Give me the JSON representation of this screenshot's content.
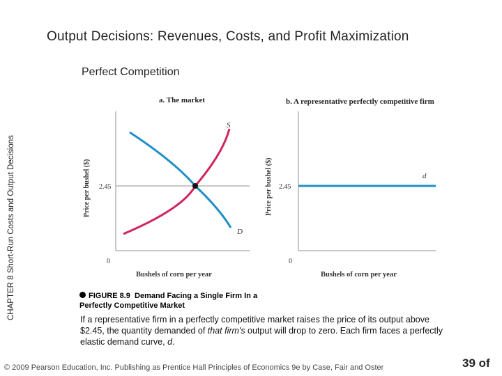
{
  "slide": {
    "title": "Output Decisions:  Revenues, Costs, and Profit Maximization",
    "subtitle": "Perfect Competition",
    "vertical_label": "CHAPTER 8  Short-Run Costs and Output Decisions"
  },
  "figure": {
    "panel_a_title": "a. The market",
    "panel_b_title": "b. A representative perfectly competitive firm",
    "y_axis_label_a": "Price per bushel ($)",
    "y_axis_label_b": "Price per bushel ($)",
    "x_axis_label_a": "Bushels of corn per year",
    "x_axis_label_b": "Bushels of corn per year",
    "price_tick_a": "2.45",
    "price_tick_b": "2.45",
    "origin_a": "0",
    "origin_b": "0",
    "supply_label": "S",
    "demand_label": "D",
    "firm_demand_label": "d",
    "colors": {
      "supply": "#d0245e",
      "demand": "#1f8fc7",
      "gray": "#b5b5b5"
    }
  },
  "caption": {
    "figure_number": "FIGURE 8.9",
    "figure_title": "Demand Facing a Single Firm In a Perfectly Competitive Market",
    "body_part1": "If a representative firm in a perfectly competitive market raises the price of its output above $2.45, the quantity demanded of ",
    "body_italic": "that firm's",
    "body_part2": " output will drop to zero.  Each firm faces a perfectly elastic demand curve, ",
    "body_d": "d",
    "body_end": "."
  },
  "footer": {
    "copyright": "© 2009 Pearson Education, Inc. Publishing as Prentice Hall   Principles of Economics 9e by Case, Fair and Oster",
    "page": "39 of"
  }
}
